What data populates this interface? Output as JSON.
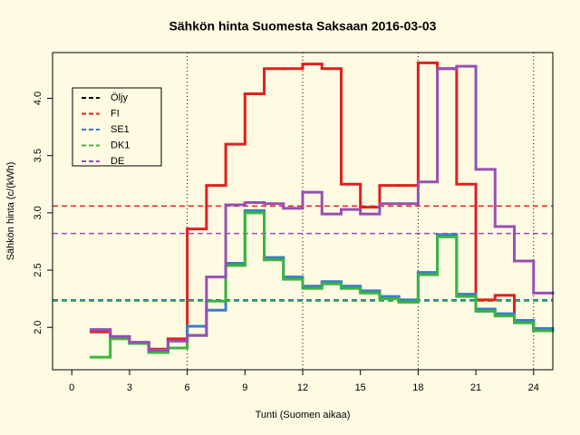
{
  "chart_data": {
    "type": "step",
    "title": "Sähkön hinta Suomesta Saksaan 2016-03-03",
    "x_label": "Tunti (Suomen aikaa)",
    "y_label": "Sähkön hinta (c/(kWh)",
    "x": [
      1,
      2,
      3,
      4,
      5,
      6,
      7,
      8,
      9,
      10,
      11,
      12,
      13,
      14,
      15,
      16,
      17,
      18,
      19,
      20,
      21,
      22,
      23,
      24
    ],
    "series": [
      {
        "name": "Öljy",
        "color": "#000000",
        "mean": 2.24
      },
      {
        "name": "FI",
        "color": "#e02020",
        "mean": 3.06,
        "values": [
          1.96,
          1.91,
          1.86,
          1.81,
          1.9,
          2.86,
          3.24,
          3.6,
          4.04,
          4.26,
          4.26,
          4.3,
          4.26,
          3.25,
          3.05,
          3.24,
          3.24,
          4.31,
          4.26,
          3.25,
          2.24,
          2.28,
          2.06,
          1.98
        ]
      },
      {
        "name": "SE1",
        "color": "#3a7dc8",
        "mean": 2.24,
        "values": [
          1.98,
          1.92,
          1.86,
          1.8,
          1.82,
          2.01,
          2.15,
          2.56,
          3.02,
          2.61,
          2.44,
          2.36,
          2.4,
          2.36,
          2.32,
          2.27,
          2.24,
          2.48,
          2.81,
          2.29,
          2.16,
          2.12,
          2.06,
          1.99
        ]
      },
      {
        "name": "DK1",
        "color": "#3cb43c",
        "mean": 2.23,
        "values": [
          1.74,
          1.9,
          1.86,
          1.78,
          1.82,
          1.93,
          2.23,
          2.54,
          3.0,
          2.59,
          2.42,
          2.34,
          2.38,
          2.34,
          2.3,
          2.25,
          2.22,
          2.46,
          2.79,
          2.27,
          2.14,
          2.1,
          2.04,
          1.97
        ]
      },
      {
        "name": "DE",
        "color": "#9650b4",
        "mean": 2.82,
        "values": [
          1.98,
          1.92,
          1.87,
          1.8,
          1.88,
          1.93,
          2.44,
          3.07,
          3.09,
          3.08,
          3.04,
          3.18,
          2.99,
          3.03,
          2.99,
          3.08,
          3.08,
          3.27,
          4.26,
          4.28,
          3.38,
          2.88,
          2.58,
          2.3
        ]
      }
    ],
    "xlim": [
      -1,
      25
    ],
    "ylim": [
      1.63,
      4.4
    ],
    "xticks": [
      0,
      3,
      6,
      9,
      12,
      15,
      18,
      21,
      24
    ],
    "yticks": [
      {
        "value": 2.0,
        "label": "2.0"
      },
      {
        "value": 2.5,
        "label": "2.5"
      },
      {
        "value": 3.0,
        "label": "3.0"
      },
      {
        "value": 3.5,
        "label": "3.5"
      },
      {
        "value": 4.0,
        "label": "4.0"
      }
    ],
    "vlines": [
      6,
      12,
      18,
      24
    ],
    "legend": "top-left"
  }
}
